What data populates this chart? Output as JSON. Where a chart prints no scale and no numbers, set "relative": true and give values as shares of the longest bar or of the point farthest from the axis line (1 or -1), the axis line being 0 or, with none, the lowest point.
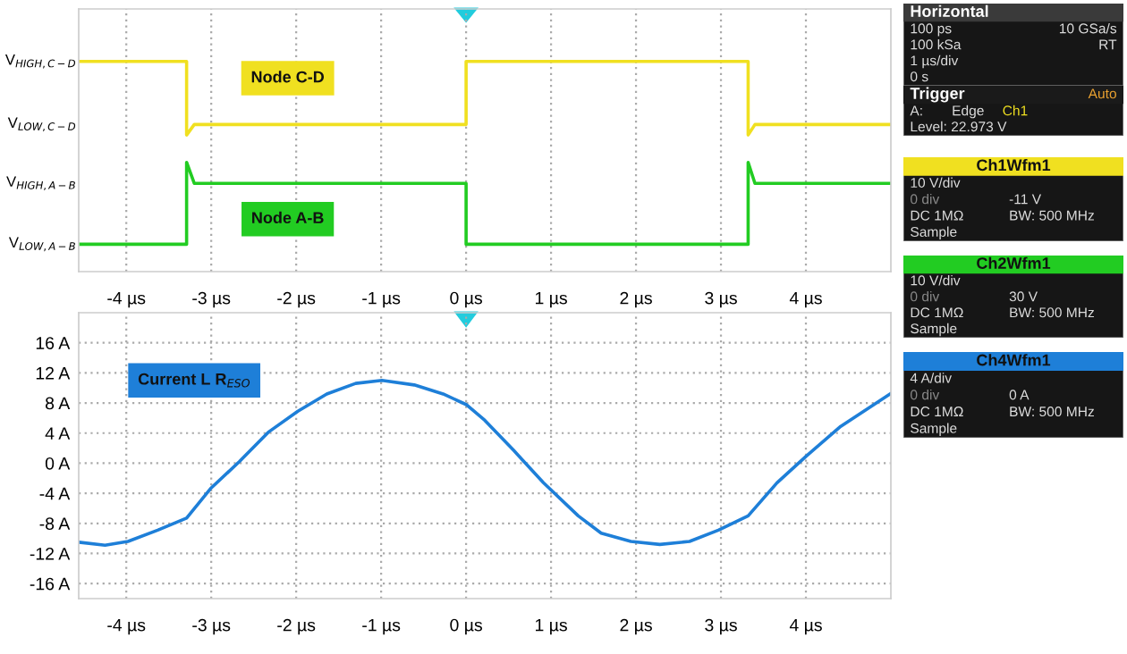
{
  "chart_data": [
    {
      "type": "line",
      "relative": true,
      "grid": "x",
      "tick_labels": "x",
      "xlim": [
        -4.56,
        5.0
      ],
      "annotations": [
        "V$_{HIGH,C−D}$",
        "V$_{LOW,C−D}$",
        "V$_{HIGH,A−B}$",
        "V$_{LOW,A−B}$"
      ],
      "xticks": [
        {
          "value": -4,
          "label": "-4 µs"
        },
        {
          "value": -3,
          "label": "-3 µs"
        },
        {
          "value": -2,
          "label": "-2 µs"
        },
        {
          "value": -1,
          "label": "-1 µs"
        },
        {
          "value": 0,
          "label": "0 µs"
        },
        {
          "value": 1,
          "label": "1 µs"
        },
        {
          "value": 2,
          "label": "2 µs"
        },
        {
          "value": 3,
          "label": "3 µs"
        },
        {
          "value": 4,
          "label": "4 µs"
        }
      ],
      "series": [
        {
          "name": "Node C-D",
          "color": "#f0e020",
          "x": [
            -4.56,
            -3.29,
            -3.29,
            -3.2,
            0,
            0,
            3.32,
            3.32,
            3.4,
            5.0
          ],
          "values": [
            1,
            1,
            0.65,
            0.7,
            0.7,
            1,
            1,
            0.65,
            0.7,
            0.7
          ]
        },
        {
          "name": "Node A-B",
          "color": "#22cc22",
          "x": [
            -4.56,
            -3.29,
            -3.29,
            -3.2,
            0,
            0,
            3.32,
            3.32,
            3.4,
            5.0
          ],
          "values": [
            0.13,
            0.13,
            0.52,
            0.42,
            0.42,
            0.13,
            0.13,
            0.52,
            0.42,
            0.42
          ]
        }
      ]
    },
    {
      "type": "line",
      "grid": true,
      "xlim": [
        -4.56,
        5.0
      ],
      "ylim": [
        -18,
        20
      ],
      "xticks": [
        {
          "value": -4,
          "label": "-4 µs"
        },
        {
          "value": -3,
          "label": "-3 µs"
        },
        {
          "value": -2,
          "label": "-2 µs"
        },
        {
          "value": -1,
          "label": "-1 µs"
        },
        {
          "value": 0,
          "label": "0 µs"
        },
        {
          "value": 1,
          "label": "1 µs"
        },
        {
          "value": 2,
          "label": "2 µs"
        },
        {
          "value": 3,
          "label": "3 µs"
        },
        {
          "value": 4,
          "label": "4 µs"
        }
      ],
      "yticks": [
        {
          "value": 16,
          "label": "16 A"
        },
        {
          "value": 12,
          "label": "12 A"
        },
        {
          "value": 8,
          "label": "8 A"
        },
        {
          "value": 4,
          "label": "4 A"
        },
        {
          "value": 0,
          "label": "0 A"
        },
        {
          "value": -4,
          "label": "-4 A"
        },
        {
          "value": -8,
          "label": "-8 A"
        },
        {
          "value": -12,
          "label": "-12 A"
        },
        {
          "value": -16,
          "label": "-16 A"
        }
      ],
      "series": [
        {
          "name": "Current L R$_{ESO}$",
          "color": "#1e7fd8",
          "x": [
            -4.56,
            -4.25,
            -3.98,
            -3.63,
            -3.29,
            -3.01,
            -2.67,
            -2.33,
            -1.98,
            -1.64,
            -1.3,
            -0.99,
            -0.61,
            -0.27,
            0,
            0.22,
            0.56,
            0.91,
            1.32,
            1.59,
            1.94,
            2.28,
            2.63,
            2.97,
            3.32,
            3.66,
            4.0,
            4.41,
            4.99
          ],
          "values": [
            -10.5,
            -10.9,
            -10.4,
            -8.9,
            -7.3,
            -3.4,
            0.2,
            4.1,
            6.9,
            9.2,
            10.6,
            11.0,
            10.4,
            9.2,
            7.8,
            5.7,
            1.7,
            -2.6,
            -7.0,
            -9.3,
            -10.4,
            -10.8,
            -10.4,
            -8.9,
            -7.0,
            -2.6,
            0.9,
            4.9,
            9.2
          ]
        }
      ]
    },
    {
      "type": "other",
      "title": "Horizontal",
      "annotations": [
        "100 ps",
        "10 GSa/s",
        "100 kSa",
        "RT",
        "1 µs/div",
        "0 s"
      ]
    },
    {
      "type": "other",
      "title": "Trigger",
      "annotations": [
        "Auto",
        "A:",
        "Edge",
        "Ch1",
        "Level: 22.973 V"
      ]
    },
    {
      "type": "other",
      "title": "Ch1Wfm1",
      "annotations": [
        "10 V/div",
        "0 div",
        "-11 V",
        "DC 1MΩ",
        "BW: 500 MHz",
        "Sample"
      ]
    },
    {
      "type": "other",
      "title": "Ch2Wfm1",
      "annotations": [
        "10 V/div",
        "0 div",
        "30 V",
        "DC 1MΩ",
        "BW: 500 MHz",
        "Sample"
      ]
    },
    {
      "type": "other",
      "title": "Ch4Wfm1",
      "annotations": [
        "4 A/div",
        "0 div",
        "0 A",
        "DC 1MΩ",
        "BW: 500 MHz",
        "Sample"
      ]
    }
  ]
}
